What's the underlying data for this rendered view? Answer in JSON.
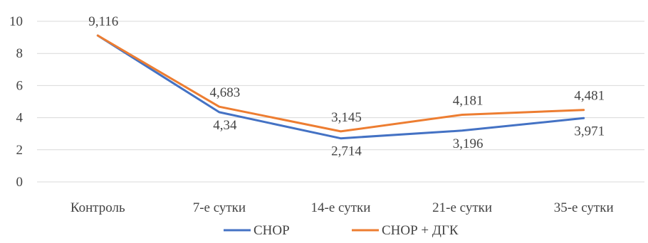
{
  "chart_data": {
    "type": "line",
    "title": "",
    "xlabel": "",
    "ylabel": "",
    "categories": [
      "Контроль",
      "7-е сутки",
      "14-е сутки",
      "21-е сутки",
      "35-е сутки"
    ],
    "ylim": [
      0,
      10
    ],
    "yticks": [
      0,
      2,
      4,
      6,
      8,
      10
    ],
    "grid": true,
    "legend_position": "bottom",
    "series": [
      {
        "name": "СНОР",
        "color": "#4472c4",
        "values": [
          9.116,
          4.34,
          2.714,
          3.196,
          3.971
        ],
        "labels": [
          "",
          "4,34",
          "2,714",
          "3,196",
          "3,971"
        ]
      },
      {
        "name": "СНОР + ДГК",
        "color": "#ed7d31",
        "values": [
          9.116,
          4.683,
          3.145,
          4.181,
          4.481
        ],
        "labels": [
          "9,116",
          "4,683",
          "3,145",
          "4,181",
          "4,481"
        ]
      }
    ]
  }
}
